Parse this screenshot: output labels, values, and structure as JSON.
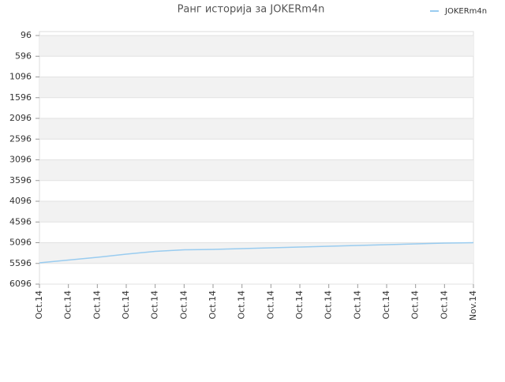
{
  "chart_data": {
    "type": "line",
    "title": "Ранг историја за JOKERm4n",
    "categories": [
      "Oct.14",
      "Oct.14",
      "Oct.14",
      "Oct.14",
      "Oct.14",
      "Oct.14",
      "Oct.14",
      "Oct.14",
      "Oct.14",
      "Oct.14",
      "Oct.14",
      "Oct.14",
      "Oct.14",
      "Oct.14",
      "Oct.14",
      "Nov.14"
    ],
    "series": [
      {
        "name": "JOKERm4n",
        "color": "#99ccf0",
        "values": [
          5582,
          5515,
          5448,
          5372,
          5305,
          5267,
          5258,
          5239,
          5220,
          5201,
          5182,
          5163,
          5144,
          5125,
          5106,
          5096
        ]
      }
    ],
    "ylim": [
      6096,
      96
    ],
    "yticks": [
      96,
      596,
      1096,
      1596,
      2096,
      2596,
      3096,
      3596,
      4096,
      4596,
      5096,
      5596,
      6096
    ],
    "grid": true,
    "legend": "top-right"
  }
}
